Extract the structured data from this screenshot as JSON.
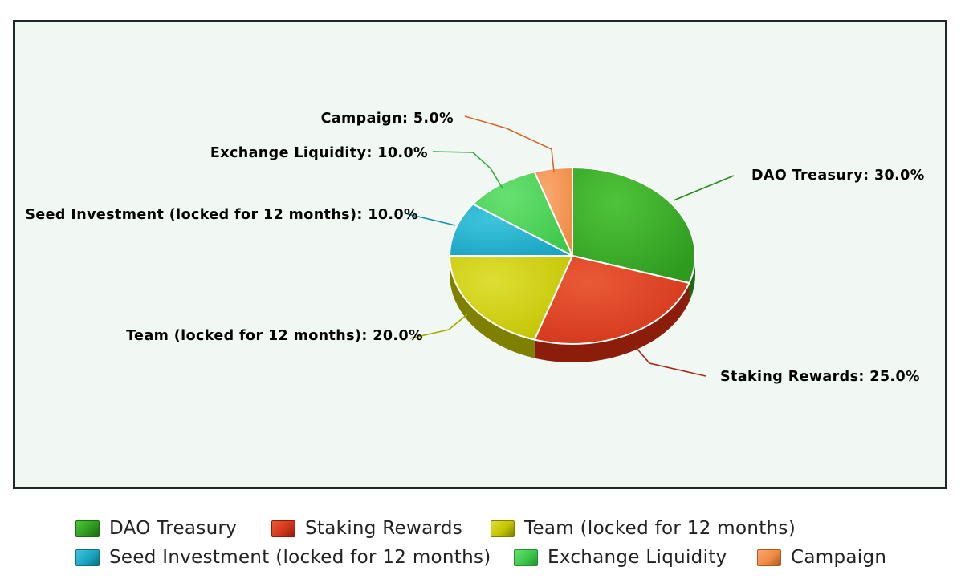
{
  "chart_data": {
    "type": "pie",
    "title": "",
    "slices": [
      {
        "name": "DAO Treasury",
        "value": 30.0,
        "label": "DAO Treasury: 30.0%",
        "color": "#2e9a1f",
        "dark": "#1a6a10",
        "light": "#4fc43a",
        "line": "#238a17"
      },
      {
        "name": "Staking Rewards",
        "value": 25.0,
        "label": "Staking Rewards: 25.0%",
        "color": "#d2361a",
        "dark": "#8c1d0b",
        "light": "#ea5a37",
        "line": "#a62612"
      },
      {
        "name": "Team (locked for 12 months)",
        "value": 20.0,
        "label": "Team (locked for 12 months): 20.0%",
        "color": "#c3c400",
        "dark": "#7f8000",
        "light": "#dede35",
        "line": "#a7a700"
      },
      {
        "name": "Seed Investment (locked for 12 months)",
        "value": 10.0,
        "label": "Seed Investment (locked for 12 months): 10.0%",
        "color": "#1aa5c2",
        "dark": "#0e6f85",
        "light": "#40c4dd",
        "line": "#1592ab"
      },
      {
        "name": "Exchange Liquidity",
        "value": 10.0,
        "label": "Exchange Liquidity: 10.0%",
        "color": "#3dc84a",
        "dark": "#24912e",
        "light": "#68e072",
        "line": "#2fae3a"
      },
      {
        "name": "Campaign",
        "value": 5.0,
        "label": "Campaign: 5.0%",
        "color": "#f08a45",
        "dark": "#b0581f",
        "light": "#f8a870",
        "line": "#d0692a"
      }
    ],
    "legend": "bottom"
  }
}
